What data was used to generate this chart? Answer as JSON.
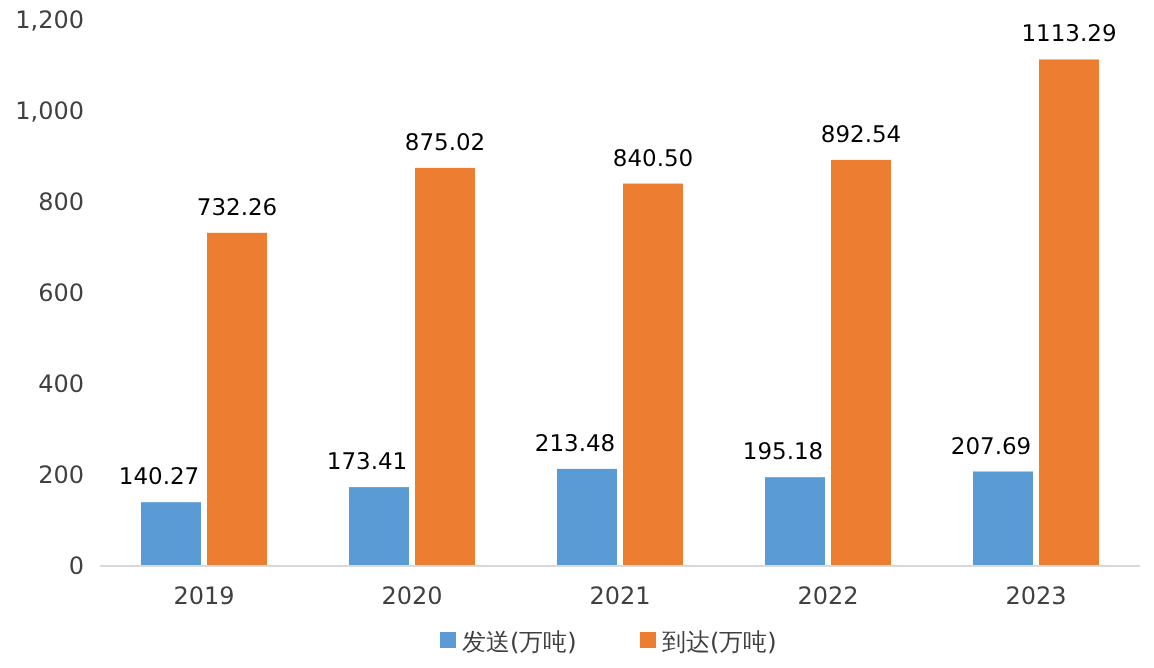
{
  "chart_data": {
    "type": "bar",
    "categories": [
      "2019",
      "2020",
      "2021",
      "2022",
      "2023"
    ],
    "series": [
      {
        "name": "发送(万吨)",
        "color": "#5b9bd5",
        "values": [
          140.27,
          173.41,
          213.48,
          195.18,
          207.69
        ],
        "value_labels": [
          "140.27",
          "173.41",
          "213.48",
          "195.18",
          "207.69"
        ]
      },
      {
        "name": "到达(万吨)",
        "color": "#ed7d31",
        "values": [
          732.26,
          875.02,
          840.5,
          892.54,
          1113.29
        ],
        "value_labels": [
          "732.26",
          "875.02",
          "840.50",
          "892.54",
          "1113.29"
        ]
      }
    ],
    "ylim": [
      0,
      1200
    ],
    "yticks": [
      0,
      200,
      400,
      600,
      800,
      {
        "value": 1000,
        "label": "1,000"
      },
      {
        "value": 1200,
        "label": "1,200"
      }
    ],
    "legend": "bottom"
  }
}
